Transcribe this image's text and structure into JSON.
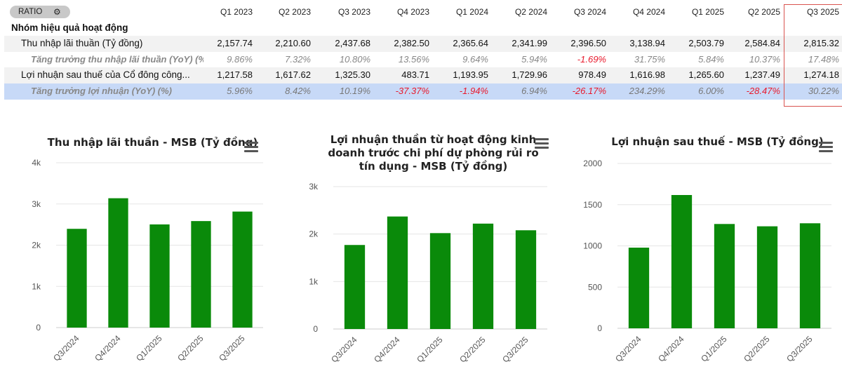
{
  "table": {
    "ratio_label": "RATIO",
    "ratio_icon": "gear-icon",
    "columns": [
      "Q1 2023",
      "Q2 2023",
      "Q3 2023",
      "Q4 2023",
      "Q1 2024",
      "Q2 2024",
      "Q3 2024",
      "Q4 2024",
      "Q1 2025",
      "Q2 2025",
      "Q3 2025"
    ],
    "group_label": "Nhóm hiệu quả hoạt động",
    "rows": [
      {
        "label": "Thu nhập lãi thuần (Tỷ đồng)",
        "values": [
          "2,157.74",
          "2,210.60",
          "2,437.68",
          "2,382.50",
          "2,365.64",
          "2,341.99",
          "2,396.50",
          "3,138.94",
          "2,503.79",
          "2,584.84",
          "2,815.32"
        ]
      },
      {
        "label": "Tăng trưởng thu nhập lãi thuần (YoY) (%)",
        "values": [
          "9.86%",
          "7.32%",
          "10.80%",
          "13.56%",
          "9.64%",
          "5.94%",
          "-1.69%",
          "31.75%",
          "5.84%",
          "10.37%",
          "17.48%"
        ]
      },
      {
        "label": "Lợi nhuận sau thuế của Cổ đông công...",
        "values": [
          "1,217.58",
          "1,617.62",
          "1,325.30",
          "483.71",
          "1,193.95",
          "1,729.96",
          "978.49",
          "1,616.98",
          "1,265.60",
          "1,237.49",
          "1,274.18"
        ]
      },
      {
        "label": "Tăng trưởng lợi nhuận (YoY) (%)",
        "values": [
          "5.96%",
          "8.42%",
          "10.19%",
          "-37.37%",
          "-1.94%",
          "6.94%",
          "-26.17%",
          "234.29%",
          "6.00%",
          "-28.47%",
          "30.22%"
        ]
      }
    ]
  },
  "chart_data": [
    {
      "type": "bar",
      "title": "Thu nhập lãi thuần - MSB (Tỷ đồng)",
      "title_lines": [
        "Thu nhập lãi thuần - MSB (Tỷ đồng)"
      ],
      "categories": [
        "Q3/2024",
        "Q4/2024",
        "Q1/2025",
        "Q2/2025",
        "Q3/2025"
      ],
      "values": [
        2396.5,
        3138.94,
        2503.79,
        2584.84,
        2815.32
      ],
      "yticks": [
        0,
        1000,
        2000,
        3000,
        4000
      ],
      "ytick_labels": [
        "0",
        "1k",
        "2k",
        "3k",
        "4k"
      ],
      "ylim": [
        0,
        4000
      ],
      "color": "#0a8a0a",
      "grid": true
    },
    {
      "type": "bar",
      "title": "Lợi nhuận thuần từ hoạt động kinh doanh trước chi phí dự phòng rủi ro tín dụng - MSB (Tỷ đồng)",
      "title_lines": [
        "Lợi nhuận thuần từ hoạt động kinh",
        "doanh trước chi phí dự phòng rủi ro",
        "tín dụng - MSB (Tỷ đồng)"
      ],
      "categories": [
        "Q3/2024",
        "Q4/2024",
        "Q1/2025",
        "Q2/2025",
        "Q3/2025"
      ],
      "values": [
        1770,
        2370,
        2020,
        2220,
        2080
      ],
      "yticks": [
        0,
        1000,
        2000,
        3000
      ],
      "ytick_labels": [
        "0",
        "1k",
        "2k",
        "3k"
      ],
      "ylim": [
        0,
        3000
      ],
      "color": "#0a8a0a",
      "grid": true
    },
    {
      "type": "bar",
      "title": "Lợi nhuận sau thuế - MSB (Tỷ đồng)",
      "title_lines": [
        "Lợi nhuận sau thuế - MSB (Tỷ đồng)"
      ],
      "categories": [
        "Q3/2024",
        "Q4/2024",
        "Q1/2025",
        "Q2/2025",
        "Q3/2025"
      ],
      "values": [
        978.49,
        1616.98,
        1265.6,
        1237.49,
        1274.18
      ],
      "yticks": [
        0,
        500,
        1000,
        1500,
        2000
      ],
      "ytick_labels": [
        "0",
        "500",
        "1000",
        "1500",
        "2000"
      ],
      "ylim": [
        0,
        2000
      ],
      "color": "#0a8a0a",
      "grid": true
    }
  ]
}
